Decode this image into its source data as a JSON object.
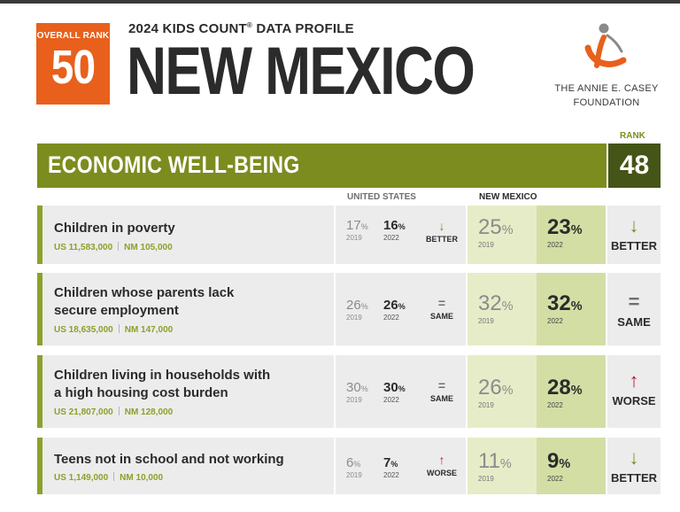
{
  "header": {
    "overall_rank_label": "OVERALL RANK",
    "overall_rank": "50",
    "subtitle": "2024 KIDS COUNT",
    "subtitle_suffix": " DATA PROFILE",
    "registered": "®",
    "state": "NEW MEXICO",
    "foundation_line1": "THE ANNIE E. CASEY",
    "foundation_line2": "FOUNDATION",
    "logo_colors": {
      "figure": "#e8601c",
      "head": "#8a8a8a"
    }
  },
  "section": {
    "title": "ECONOMIC WELL-BEING",
    "rank_label": "RANK",
    "rank": "48",
    "color": "#7d8c1e"
  },
  "columns": {
    "us": "UNITED STATES",
    "nm": "NEW MEXICO"
  },
  "indicators": [
    {
      "title_lines": [
        "Children in poverty"
      ],
      "us_count": "US 11,583,000",
      "nm_count": "NM 105,000",
      "us_old": "17",
      "us_old_year": "2019",
      "us_new": "16",
      "us_new_year": "2022",
      "us_trend": "BETTER",
      "us_arrow": "↓",
      "nm_old": "25",
      "nm_old_year": "2019",
      "nm_new": "23",
      "nm_new_year": "2022",
      "nm_trend": "BETTER",
      "nm_arrow": "↓"
    },
    {
      "title_lines": [
        "Children whose parents lack",
        "secure employment"
      ],
      "us_count": "US 18,635,000",
      "nm_count": "NM 147,000",
      "us_old": "26",
      "us_old_year": "2019",
      "us_new": "26",
      "us_new_year": "2022",
      "us_trend": "SAME",
      "us_arrow": "=",
      "nm_old": "32",
      "nm_old_year": "2019",
      "nm_new": "32",
      "nm_new_year": "2022",
      "nm_trend": "SAME",
      "nm_arrow": "="
    },
    {
      "title_lines": [
        "Children living in households with",
        "a high housing cost burden"
      ],
      "us_count": "US 21,807,000",
      "nm_count": "NM 128,000",
      "us_old": "30",
      "us_old_year": "2019",
      "us_new": "30",
      "us_new_year": "2022",
      "us_trend": "SAME",
      "us_arrow": "=",
      "nm_old": "26",
      "nm_old_year": "2019",
      "nm_new": "28",
      "nm_new_year": "2022",
      "nm_trend": "WORSE",
      "nm_arrow": "↑"
    },
    {
      "title_lines": [
        "Teens not in school and not working"
      ],
      "us_count": "US 1,149,000",
      "nm_count": "NM 10,000",
      "us_old": "6",
      "us_old_year": "2019",
      "us_new": "7",
      "us_new_year": "2022",
      "us_trend": "WORSE",
      "us_arrow": "↑",
      "nm_old": "11",
      "nm_old_year": "2019",
      "nm_new": "9",
      "nm_new_year": "2022",
      "nm_trend": "BETTER",
      "nm_arrow": "↓"
    }
  ],
  "percent_sign": "%"
}
